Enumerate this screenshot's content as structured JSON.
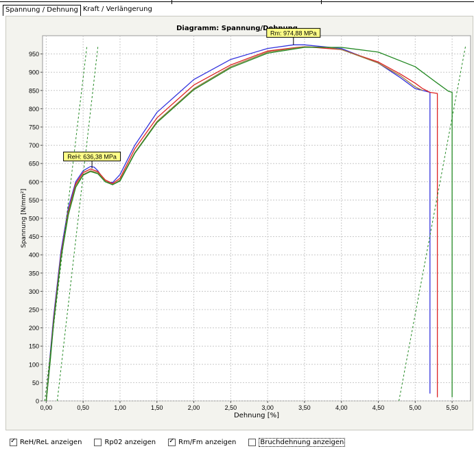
{
  "tabs": [
    {
      "label": "Spannung / Dehnung",
      "active": true
    },
    {
      "label": "Kraft / Verlängerung",
      "active": false
    }
  ],
  "checkboxes": [
    {
      "label": "ReH/ReL anzeigen",
      "checked": true
    },
    {
      "label": "Rp02 anzeigen",
      "checked": false
    },
    {
      "label": "Rm/Fm anzeigen",
      "checked": true
    },
    {
      "label": "Bruchdehnung anzeigen",
      "checked": false
    }
  ],
  "chart_data": {
    "type": "line",
    "title": "Diagramm: Spannung/Dehnung",
    "xlabel": "Dehnung [%]",
    "ylabel": "Spannung [N/mm²]",
    "xlim": [
      -0.05,
      5.75
    ],
    "ylim": [
      0,
      1000
    ],
    "x_ticks": [
      "0,00",
      "0,50",
      "1,00",
      "1,50",
      "2,00",
      "2,50",
      "3,00",
      "3,50",
      "4,00",
      "4,50",
      "5,00",
      "5,50"
    ],
    "y_ticks": [
      "0",
      "50",
      "100",
      "150",
      "200",
      "250",
      "300",
      "350",
      "400",
      "450",
      "500",
      "550",
      "600",
      "650",
      "700",
      "750",
      "800",
      "850",
      "900",
      "950"
    ],
    "grid": true,
    "annotations": [
      {
        "text": "ReH: 636,38 MPa",
        "x": 0.62,
        "y": 636.38
      },
      {
        "text": "Rm: 974,88 MPa",
        "x": 3.35,
        "y": 974.88
      }
    ],
    "series": [
      {
        "color": "#3333dd",
        "x": [
          0,
          0.05,
          0.1,
          0.2,
          0.3,
          0.4,
          0.5,
          0.6,
          0.65,
          0.7,
          0.8,
          0.9,
          1.0,
          1.2,
          1.5,
          2.0,
          2.5,
          3.0,
          3.35,
          3.5,
          4.0,
          4.5,
          4.8,
          5.0,
          5.1,
          5.2,
          5.2
        ],
        "y": [
          0,
          120,
          230,
          410,
          530,
          600,
          630,
          642,
          640,
          630,
          600,
          598,
          620,
          700,
          790,
          880,
          935,
          965,
          975,
          975,
          965,
          925,
          885,
          855,
          850,
          845,
          20
        ]
      },
      {
        "color": "#dd2222",
        "x": [
          0,
          0.05,
          0.1,
          0.2,
          0.3,
          0.4,
          0.5,
          0.6,
          0.7,
          0.8,
          0.9,
          1.0,
          1.2,
          1.5,
          2.0,
          2.5,
          3.0,
          3.4,
          3.5,
          4.0,
          4.5,
          4.8,
          5.0,
          5.1,
          5.2,
          5.3,
          5.3
        ],
        "y": [
          0,
          110,
          220,
          400,
          520,
          595,
          625,
          635,
          628,
          605,
          595,
          610,
          690,
          775,
          865,
          920,
          958,
          968,
          970,
          962,
          928,
          895,
          870,
          855,
          845,
          842,
          10
        ]
      },
      {
        "color": "#9a7a40",
        "x": [
          0,
          0.05,
          0.1,
          0.2,
          0.3,
          0.4,
          0.5,
          0.6,
          0.7,
          0.8,
          0.9,
          1.0,
          1.2,
          1.5,
          2.0,
          2.5,
          3.0,
          3.5,
          3.8,
          4.0,
          4.5,
          4.8,
          5.0,
          5.1
        ],
        "y": [
          0,
          105,
          215,
          395,
          515,
          590,
          620,
          630,
          625,
          602,
          592,
          605,
          680,
          765,
          855,
          915,
          955,
          970,
          968,
          962,
          925,
          890,
          860,
          850
        ]
      },
      {
        "color": "#228822",
        "x": [
          0,
          0.05,
          0.1,
          0.2,
          0.3,
          0.4,
          0.5,
          0.6,
          0.7,
          0.8,
          0.9,
          1.0,
          1.2,
          1.5,
          2.0,
          2.5,
          3.0,
          3.5,
          4.0,
          4.5,
          5.0,
          5.3,
          5.45,
          5.5,
          5.5
        ],
        "y": [
          0,
          100,
          210,
          390,
          510,
          585,
          618,
          628,
          622,
          600,
          592,
          602,
          678,
          762,
          852,
          912,
          952,
          968,
          968,
          955,
          915,
          870,
          848,
          845,
          10
        ]
      },
      {
        "color": "#228822",
        "dashed": true,
        "x": [
          -0.02,
          0.55
        ],
        "y": [
          0,
          970
        ]
      },
      {
        "color": "#228822",
        "dashed": true,
        "x": [
          0.15,
          0.7
        ],
        "y": [
          0,
          970
        ]
      },
      {
        "color": "#228822",
        "dashed": true,
        "x": [
          4.78,
          5.68
        ],
        "y": [
          0,
          970
        ]
      }
    ]
  }
}
